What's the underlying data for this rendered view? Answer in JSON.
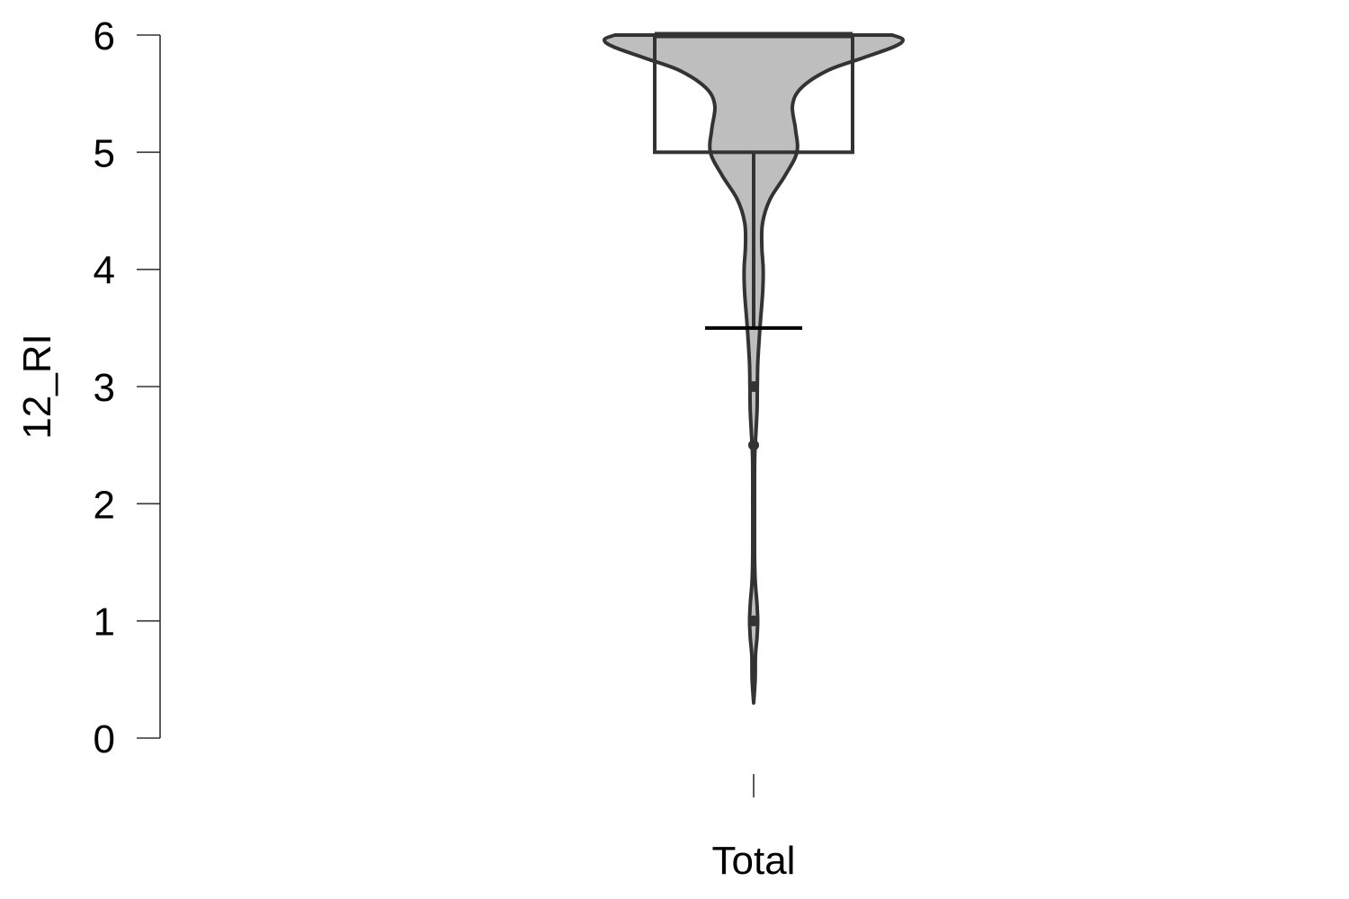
{
  "chart_data": {
    "type": "violin",
    "ylabel": "12_RI",
    "xlabel": "",
    "categories": [
      "Total"
    ],
    "ylim": [
      0,
      6
    ],
    "yticks": [
      0,
      1,
      2,
      3,
      4,
      5,
      6
    ],
    "grid": false,
    "legend": "none",
    "fill_color": "#bebebe",
    "stroke_color": "#333333",
    "box": {
      "q1": 5,
      "median": 6,
      "q3": 6,
      "whisker_low": 3.5,
      "whisker_high": 6
    },
    "lower_whisker_cap": 3.5,
    "outliers": [
      3,
      2.5,
      1
    ],
    "density": [
      [
        0.3,
        0.0
      ],
      [
        0.5,
        0.01
      ],
      [
        0.7,
        0.012
      ],
      [
        0.85,
        0.022
      ],
      [
        1.0,
        0.027
      ],
      [
        1.15,
        0.022
      ],
      [
        1.35,
        0.01
      ],
      [
        1.6,
        0.006
      ],
      [
        2.0,
        0.006
      ],
      [
        2.4,
        0.007
      ],
      [
        2.6,
        0.015
      ],
      [
        2.8,
        0.023
      ],
      [
        3.0,
        0.025
      ],
      [
        3.2,
        0.028
      ],
      [
        3.5,
        0.042
      ],
      [
        3.8,
        0.06
      ],
      [
        4.0,
        0.064
      ],
      [
        4.2,
        0.055
      ],
      [
        4.4,
        0.06
      ],
      [
        4.6,
        0.11
      ],
      [
        4.8,
        0.21
      ],
      [
        5.0,
        0.29
      ],
      [
        5.2,
        0.28
      ],
      [
        5.4,
        0.26
      ],
      [
        5.55,
        0.32
      ],
      [
        5.7,
        0.5
      ],
      [
        5.8,
        0.72
      ],
      [
        5.9,
        0.94
      ],
      [
        5.96,
        1.0
      ],
      [
        6.0,
        0.93
      ]
    ]
  }
}
